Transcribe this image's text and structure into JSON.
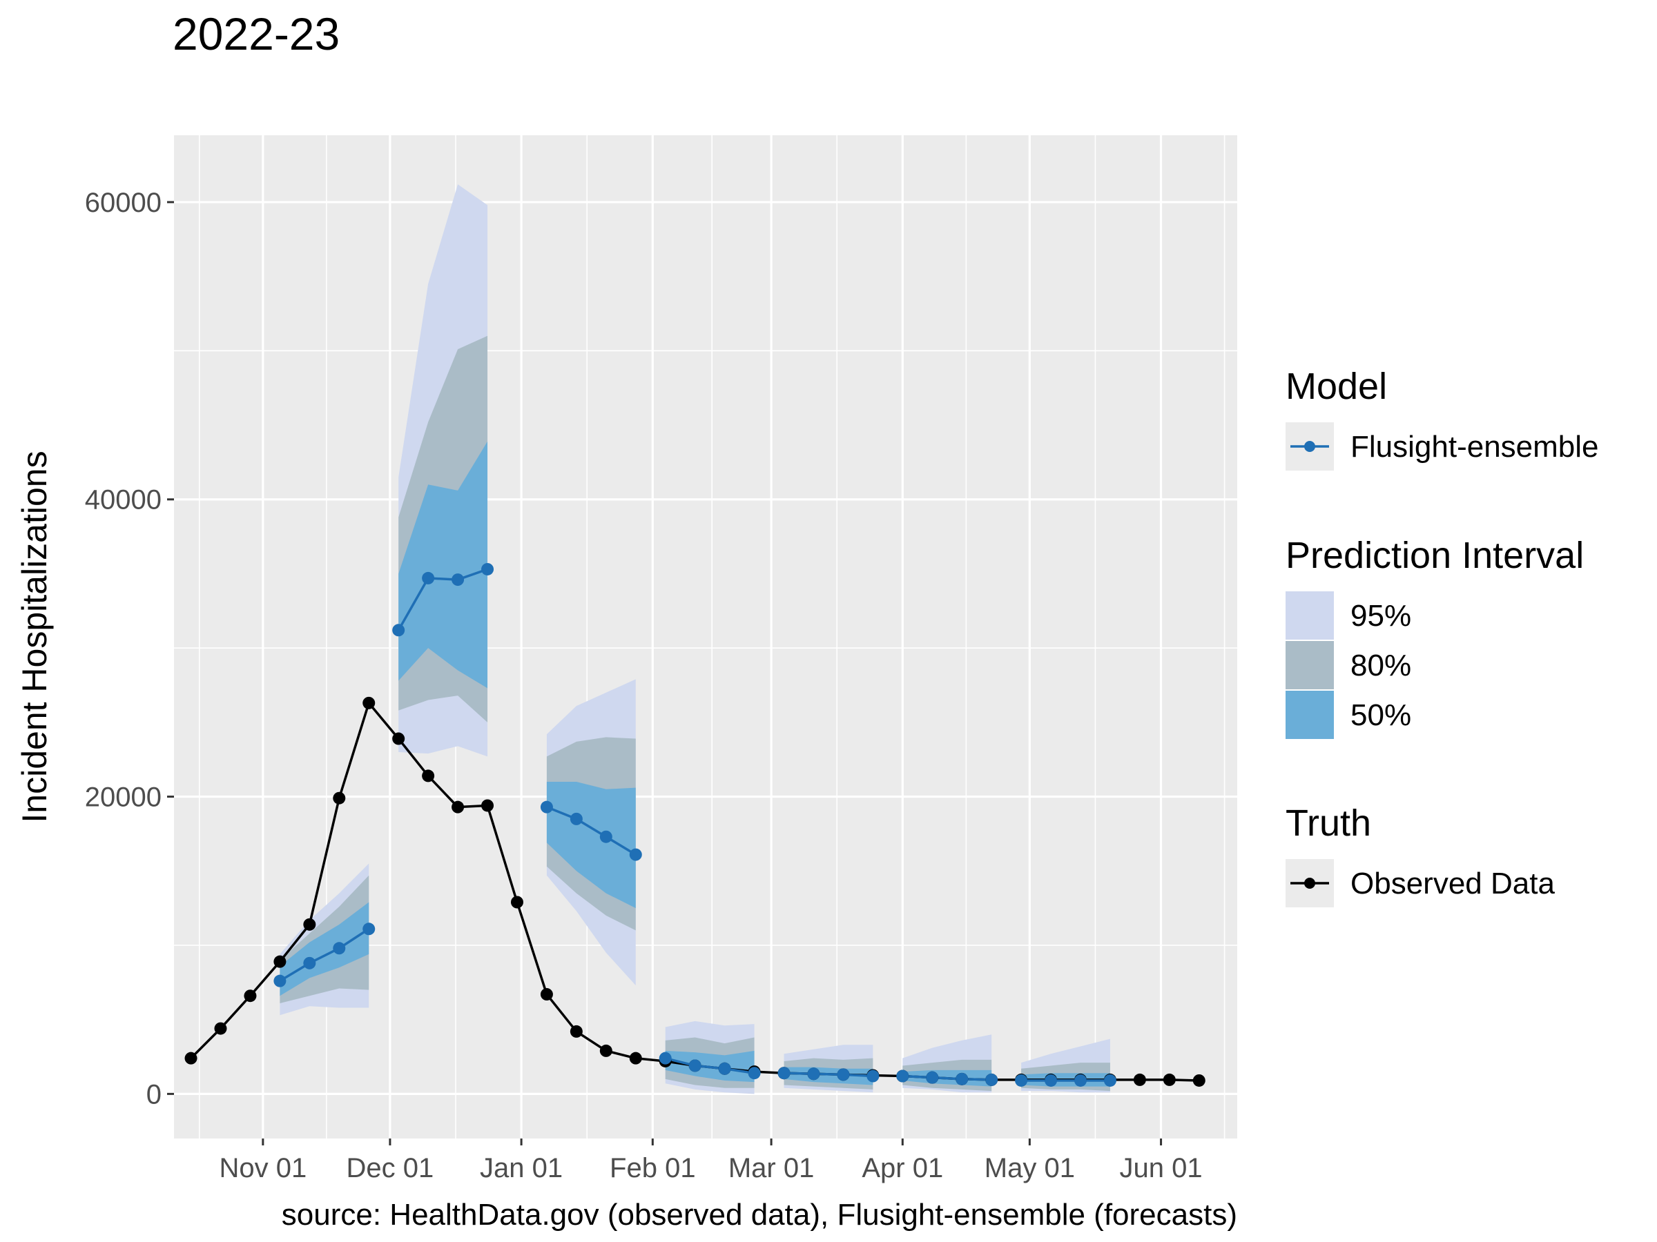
{
  "chart_data": {
    "type": "line",
    "title": "2022-23",
    "xlabel": "",
    "ylabel": "Incident Hospitalizations",
    "caption": "source: HealthData.gov (observed data), Flusight-ensemble (forecasts)",
    "ylim": [
      -3000,
      64500
    ],
    "xlim": [
      "2022-10-11",
      "2023-06-19"
    ],
    "y_ticks": [
      0,
      20000,
      40000,
      60000
    ],
    "y_tick_labels": [
      "0",
      "20000",
      "40000",
      "60000"
    ],
    "x_ticks": [
      "2022-11-01",
      "2022-12-01",
      "2023-01-01",
      "2023-02-01",
      "2023-03-01",
      "2023-04-01",
      "2023-05-01",
      "2023-06-01"
    ],
    "x_tick_labels": [
      "Nov 01",
      "Dec 01",
      "Jan 01",
      "Feb 01",
      "Mar 01",
      "Apr 01",
      "May 01",
      "Jun 01"
    ],
    "grid": true,
    "legend_placement": "right",
    "colors": {
      "panel": "#ebebeb",
      "grid": "#ffffff",
      "observed": "#000000",
      "forecast": "#1f6fb5",
      "pi95": "#cfd8ef",
      "pi80": "#aabcc7",
      "pi50": "#6aaed8"
    },
    "legend": {
      "model_title": "Model",
      "model_label": "Flusight-ensemble",
      "pi_title": "Prediction Interval",
      "pi_labels": [
        "95%",
        "80%",
        "50%"
      ],
      "truth_title": "Truth",
      "truth_label": "Observed Data"
    },
    "observed": {
      "name": "Observed Data",
      "x": [
        "2022-10-15",
        "2022-10-22",
        "2022-10-29",
        "2022-11-05",
        "2022-11-12",
        "2022-11-19",
        "2022-11-26",
        "2022-12-03",
        "2022-12-10",
        "2022-12-17",
        "2022-12-24",
        "2022-12-31",
        "2023-01-07",
        "2023-01-14",
        "2023-01-21",
        "2023-01-28",
        "2023-02-04",
        "2023-02-11",
        "2023-02-18",
        "2023-02-25",
        "2023-03-04",
        "2023-03-11",
        "2023-03-18",
        "2023-03-25",
        "2023-04-01",
        "2023-04-08",
        "2023-04-15",
        "2023-04-22",
        "2023-04-29",
        "2023-05-06",
        "2023-05-13",
        "2023-05-20",
        "2023-05-27",
        "2023-06-03",
        "2023-06-10"
      ],
      "y": [
        2400,
        4400,
        6600,
        8900,
        11400,
        19900,
        26300,
        23900,
        21400,
        19300,
        19400,
        12900,
        6700,
        4200,
        2900,
        2400,
        2200,
        1900,
        1700,
        1500,
        1400,
        1350,
        1300,
        1250,
        1200,
        1100,
        1000,
        950,
        950,
        950,
        950,
        950,
        950,
        950,
        900
      ]
    },
    "forecasts": [
      {
        "name": "Flusight-ensemble",
        "x": [
          "2022-11-05",
          "2022-11-12",
          "2022-11-19",
          "2022-11-26"
        ],
        "median": [
          7600,
          8800,
          9800,
          11100
        ],
        "q50_lo": [
          6600,
          7800,
          8500,
          9400
        ],
        "q50_hi": [
          8600,
          10200,
          11400,
          12900
        ],
        "q80_lo": [
          6100,
          6600,
          7100,
          7000
        ],
        "q80_hi": [
          9000,
          10800,
          12600,
          14700
        ],
        "q95_lo": [
          5300,
          5900,
          5800,
          5800
        ],
        "q95_hi": [
          9400,
          11700,
          13500,
          15500
        ]
      },
      {
        "name": "Flusight-ensemble",
        "x": [
          "2022-12-03",
          "2022-12-10",
          "2022-12-17",
          "2022-12-24"
        ],
        "median": [
          31200,
          34700,
          34600,
          35300
        ],
        "q50_lo": [
          27800,
          30000,
          28500,
          27300
        ],
        "q50_hi": [
          35000,
          41000,
          40600,
          43900
        ],
        "q80_lo": [
          25800,
          26500,
          26800,
          25000
        ],
        "q80_hi": [
          38800,
          45200,
          50100,
          51000
        ],
        "q95_lo": [
          23000,
          22900,
          23400,
          22700
        ],
        "q95_hi": [
          41500,
          54500,
          61200,
          59800
        ]
      },
      {
        "name": "Flusight-ensemble",
        "x": [
          "2023-01-07",
          "2023-01-14",
          "2023-01-21",
          "2023-01-28"
        ],
        "median": [
          19300,
          18500,
          17300,
          16100
        ],
        "q50_lo": [
          16900,
          15000,
          13500,
          12500
        ],
        "q50_hi": [
          21000,
          21000,
          20500,
          20600
        ],
        "q80_lo": [
          15300,
          13500,
          12000,
          11000
        ],
        "q80_hi": [
          22700,
          23700,
          24000,
          23900
        ],
        "q95_lo": [
          14700,
          12300,
          9500,
          7300
        ],
        "q95_hi": [
          24200,
          26100,
          27000,
          27900
        ]
      },
      {
        "name": "Flusight-ensemble",
        "x": [
          "2023-02-04",
          "2023-02-11",
          "2023-02-18",
          "2023-02-25"
        ],
        "median": [
          2400,
          1900,
          1700,
          1400
        ],
        "q50_lo": [
          1600,
          1200,
          900,
          800
        ],
        "q50_hi": [
          2900,
          2800,
          2600,
          2900
        ],
        "q80_lo": [
          1000,
          600,
          400,
          400
        ],
        "q80_hi": [
          3600,
          3800,
          3400,
          3800
        ],
        "q95_lo": [
          700,
          300,
          100,
          0
        ],
        "q95_hi": [
          4500,
          4900,
          4600,
          4700
        ]
      },
      {
        "name": "Flusight-ensemble",
        "x": [
          "2023-03-04",
          "2023-03-11",
          "2023-03-18",
          "2023-03-25"
        ],
        "median": [
          1400,
          1350,
          1300,
          1200
        ],
        "q50_lo": [
          1000,
          800,
          700,
          600
        ],
        "q50_hi": [
          1800,
          1800,
          1700,
          1700
        ],
        "q80_lo": [
          600,
          500,
          400,
          300
        ],
        "q80_hi": [
          2200,
          2400,
          2300,
          2400
        ],
        "q95_lo": [
          400,
          300,
          200,
          100
        ],
        "q95_hi": [
          2700,
          3000,
          3300,
          3300
        ]
      },
      {
        "name": "Flusight-ensemble",
        "x": [
          "2023-04-01",
          "2023-04-08",
          "2023-04-15",
          "2023-04-22"
        ],
        "median": [
          1200,
          1100,
          1000,
          950
        ],
        "q50_lo": [
          900,
          700,
          600,
          500
        ],
        "q50_hi": [
          1500,
          1600,
          1600,
          1600
        ],
        "q80_lo": [
          600,
          400,
          300,
          200
        ],
        "q80_hi": [
          1900,
          2100,
          2300,
          2300
        ],
        "q95_lo": [
          400,
          300,
          100,
          100
        ],
        "q95_hi": [
          2400,
          3100,
          3600,
          4000
        ]
      },
      {
        "name": "Flusight-ensemble",
        "x": [
          "2023-04-29",
          "2023-05-06",
          "2023-05-13",
          "2023-05-20"
        ],
        "median": [
          900,
          900,
          900,
          900
        ],
        "q50_lo": [
          600,
          500,
          500,
          500
        ],
        "q50_hi": [
          1300,
          1400,
          1400,
          1400
        ],
        "q80_lo": [
          400,
          300,
          300,
          200
        ],
        "q80_hi": [
          1700,
          1900,
          2100,
          2100
        ],
        "q95_lo": [
          200,
          200,
          100,
          100
        ],
        "q95_hi": [
          2100,
          2700,
          3200,
          3700
        ]
      }
    ]
  }
}
